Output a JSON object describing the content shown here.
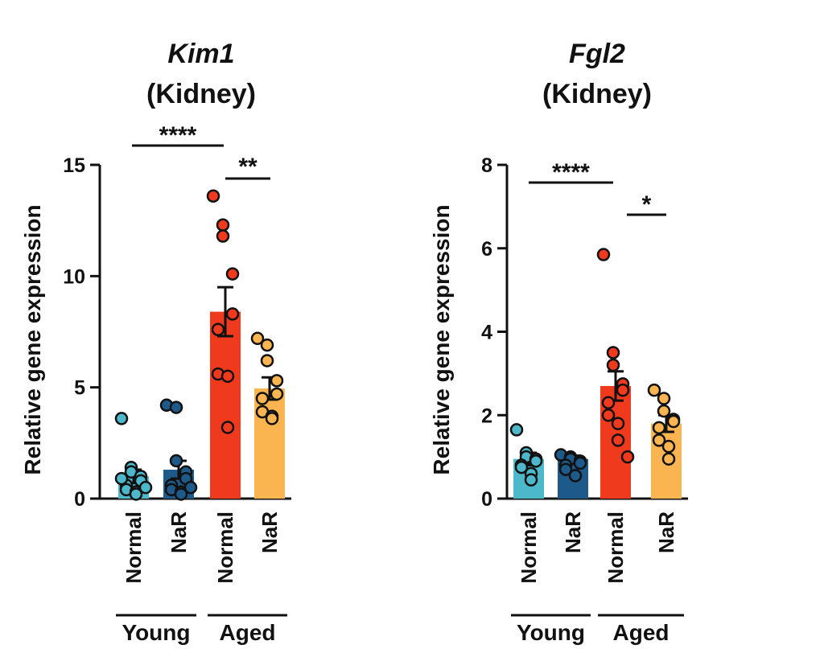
{
  "chart_data": [
    {
      "type": "bar",
      "title": "Kim1",
      "subtitle": "(Kidney)",
      "ylabel": "Relative gene expression",
      "ylim": [
        0,
        15
      ],
      "yticks": [
        0,
        5,
        10,
        15
      ],
      "categories": [
        "Normal",
        "NaR",
        "Normal",
        "NaR"
      ],
      "groups": [
        {
          "label": "Young",
          "categories": [
            0,
            1
          ]
        },
        {
          "label": "Aged",
          "categories": [
            2,
            3
          ]
        }
      ],
      "colors": [
        "#4DB8C9",
        "#1D5A8A",
        "#F03A1E",
        "#FBB550"
      ],
      "values": [
        1.0,
        1.3,
        8.4,
        4.95
      ],
      "errors": [
        0.3,
        0.4,
        1.1,
        0.5
      ],
      "points": [
        [
          3.6,
          1.4,
          1.2,
          1.0,
          0.8,
          0.6,
          0.4,
          0.3,
          0.2,
          0.5,
          0.9
        ],
        [
          4.2,
          4.1,
          1.7,
          1.2,
          0.9,
          0.6,
          0.4,
          0.3,
          0.2,
          0.5
        ],
        [
          13.6,
          12.3,
          11.8,
          10.1,
          8.3,
          7.6,
          5.6,
          5.5,
          3.2
        ],
        [
          7.2,
          6.9,
          6.2,
          5.3,
          4.7,
          4.5,
          3.9,
          3.7,
          3.6
        ]
      ],
      "significance": [
        {
          "label": "****",
          "from": 0,
          "to": 2
        },
        {
          "label": "**",
          "from": 2,
          "to": 3
        }
      ]
    },
    {
      "type": "bar",
      "title": "Fgl2",
      "subtitle": "(Kidney)",
      "ylabel": "Relative gene expression",
      "ylim": [
        0,
        8
      ],
      "yticks": [
        0,
        2,
        4,
        6,
        8
      ],
      "categories": [
        "Normal",
        "NaR",
        "Normal",
        "NaR"
      ],
      "groups": [
        {
          "label": "Young",
          "categories": [
            0,
            1
          ]
        },
        {
          "label": "Aged",
          "categories": [
            2,
            3
          ]
        }
      ],
      "colors": [
        "#4DB8C9",
        "#1D5A8A",
        "#F03A1E",
        "#FBB550"
      ],
      "values": [
        0.95,
        0.95,
        2.7,
        1.8
      ],
      "errors": [
        0.15,
        0.08,
        0.35,
        0.2
      ],
      "points": [
        [
          1.65,
          1.1,
          1.0,
          0.95,
          0.9,
          0.8,
          0.75,
          0.6,
          0.45
        ],
        [
          1.05,
          1.0,
          0.95,
          0.9,
          0.85,
          0.8,
          0.7,
          0.55
        ],
        [
          5.85,
          3.5,
          3.2,
          2.75,
          2.6,
          2.3,
          2.0,
          1.8,
          1.4,
          1.0
        ],
        [
          2.6,
          2.4,
          2.1,
          1.9,
          1.85,
          1.7,
          1.4,
          1.25,
          0.95
        ]
      ],
      "significance": [
        {
          "label": "****",
          "from": 0,
          "to": 2
        },
        {
          "label": "*",
          "from": 2,
          "to": 3
        }
      ]
    }
  ]
}
